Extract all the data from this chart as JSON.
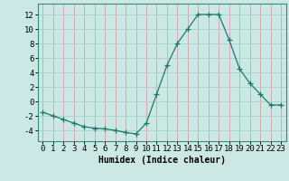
{
  "x": [
    0,
    1,
    2,
    3,
    4,
    5,
    6,
    7,
    8,
    9,
    10,
    11,
    12,
    13,
    14,
    15,
    16,
    17,
    18,
    19,
    20,
    21,
    22,
    23
  ],
  "y": [
    -1.5,
    -2.0,
    -2.5,
    -3.0,
    -3.5,
    -3.7,
    -3.8,
    -4.0,
    -4.3,
    -4.5,
    -3.0,
    1.0,
    5.0,
    8.0,
    10.0,
    12.0,
    12.0,
    12.0,
    8.5,
    4.5,
    2.5,
    1.0,
    -0.5,
    -0.5
  ],
  "line_color": "#1a7a6e",
  "marker": "+",
  "marker_size": 4,
  "bg_color": "#cce8e4",
  "grid_color": "#aacfcb",
  "xlabel": "Humidex (Indice chaleur)",
  "xlim": [
    -0.5,
    23.5
  ],
  "ylim": [
    -5.5,
    13.5
  ],
  "yticks": [
    -4,
    -2,
    0,
    2,
    4,
    6,
    8,
    10,
    12
  ],
  "xticks": [
    0,
    1,
    2,
    3,
    4,
    5,
    6,
    7,
    8,
    9,
    10,
    11,
    12,
    13,
    14,
    15,
    16,
    17,
    18,
    19,
    20,
    21,
    22,
    23
  ],
  "xlabel_fontsize": 7,
  "tick_fontsize": 6.5,
  "spine_color": "#3a8a80"
}
